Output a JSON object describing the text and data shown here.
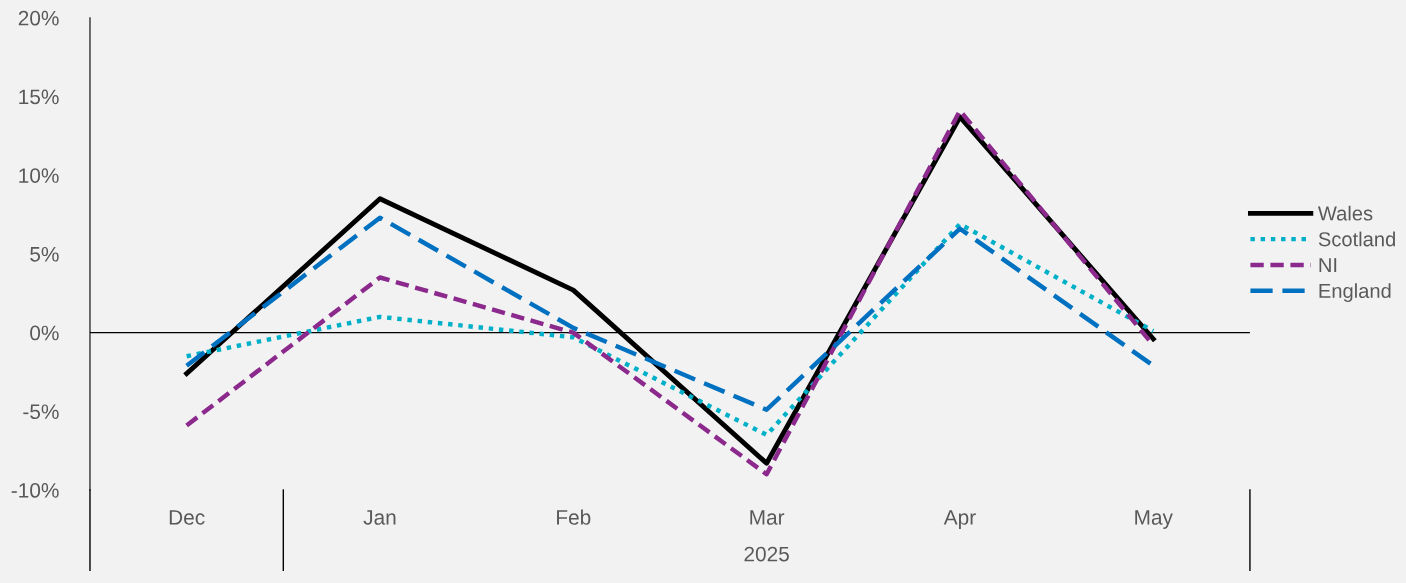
{
  "chart_data": {
    "type": "line",
    "categories": [
      "Dec",
      "Jan",
      "Feb",
      "Mar",
      "Apr",
      "May"
    ],
    "series": [
      {
        "name": "Wales",
        "color": "#000000",
        "line_style": "solid",
        "values": [
          -2.6,
          8.5,
          2.7,
          -8.3,
          13.7,
          -0.4
        ]
      },
      {
        "name": "Scotland",
        "color": "#00b0c8",
        "line_style": "dotted",
        "values": [
          -1.5,
          1.0,
          -0.3,
          -6.5,
          6.9,
          0.1
        ]
      },
      {
        "name": "NI",
        "color": "#8b2a8c",
        "line_style": "dashed",
        "values": [
          -5.9,
          3.5,
          0.0,
          -9.0,
          14.1,
          -0.8
        ]
      },
      {
        "name": "England",
        "color": "#0070c0",
        "line_style": "dashed",
        "values": [
          -2.1,
          7.3,
          0.3,
          -4.9,
          6.6,
          -2.1
        ]
      }
    ],
    "ylim": [
      -10,
      20
    ],
    "yticks": [
      {
        "value": -10,
        "label": "-10%"
      },
      {
        "value": -5,
        "label": "-5%"
      },
      {
        "value": 0,
        "label": "0%"
      },
      {
        "value": 5,
        "label": "5%"
      },
      {
        "value": 10,
        "label": "10%"
      },
      {
        "value": 15,
        "label": "15%"
      },
      {
        "value": 20,
        "label": "20%"
      }
    ],
    "annotations": [
      "2025"
    ],
    "ref_lines": [
      {
        "axis": "y",
        "value": 0,
        "color": "#000000"
      }
    ],
    "grid": false,
    "legend": "right",
    "marker": "none"
  }
}
